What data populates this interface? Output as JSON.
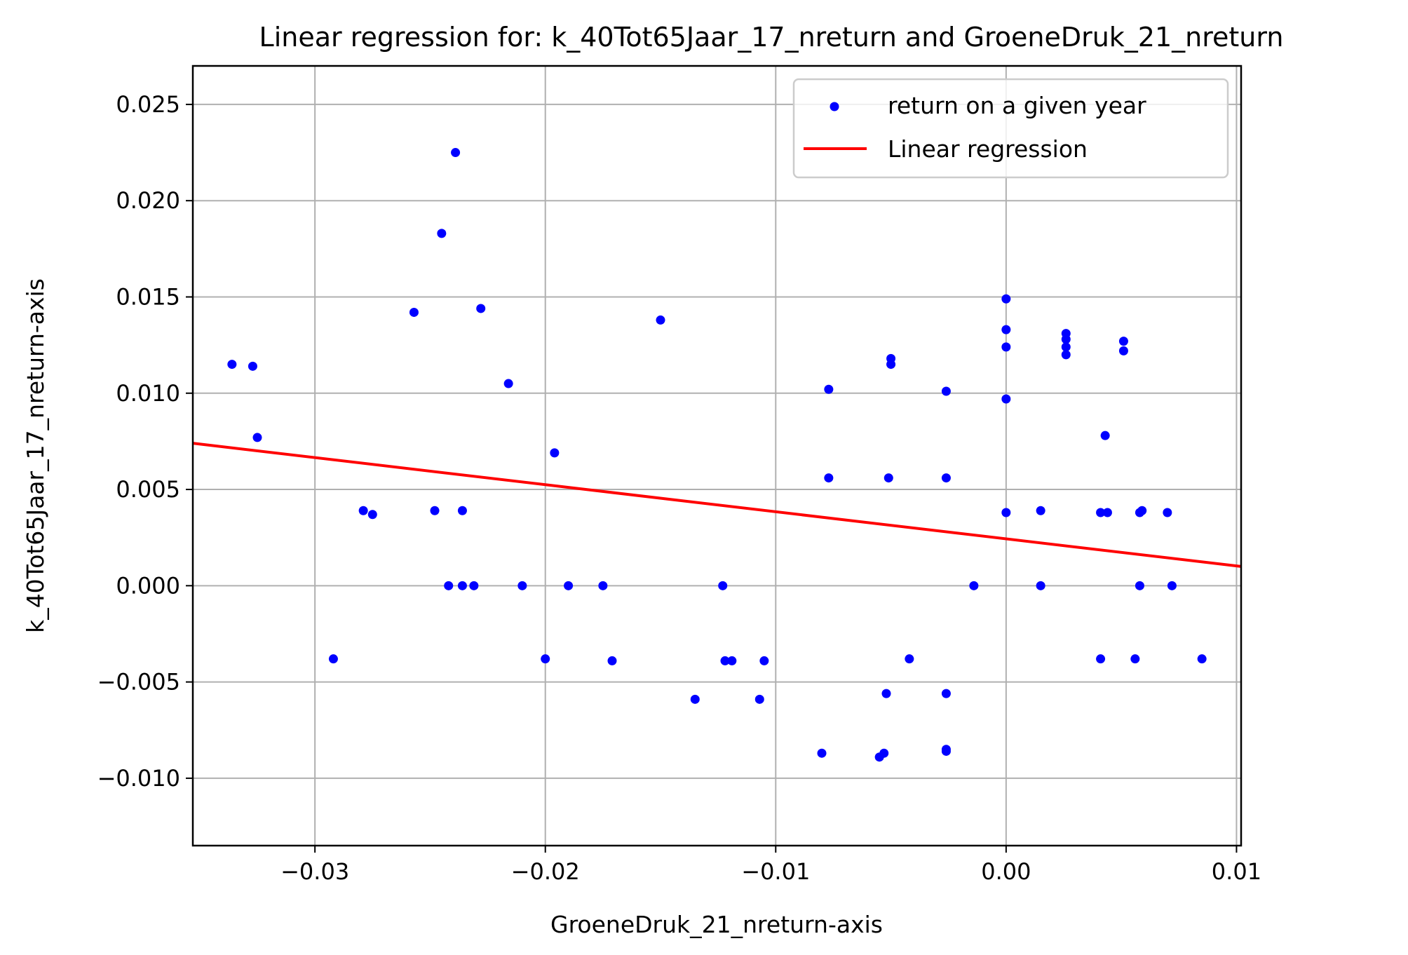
{
  "chart_data": {
    "type": "scatter",
    "title": "Linear regression for: k_40Tot65Jaar_17_nreturn and GroeneDruk_21_nreturn",
    "xlabel": "GroeneDruk_21_nreturn-axis",
    "ylabel": "k_40Tot65Jaar_17_nreturn-axis",
    "xlim": [
      -0.0353,
      0.0102
    ],
    "ylim": [
      -0.0135,
      0.027
    ],
    "x_ticks": [
      -0.03,
      -0.02,
      -0.01,
      0.0,
      0.01
    ],
    "x_tick_labels": [
      "−0.03",
      "−0.02",
      "−0.01",
      "0.00",
      "0.01"
    ],
    "y_ticks": [
      -0.01,
      -0.005,
      0.0,
      0.005,
      0.01,
      0.015,
      0.02,
      0.025
    ],
    "y_tick_labels": [
      "−0.010",
      "−0.005",
      "0.000",
      "0.005",
      "0.010",
      "0.015",
      "0.020",
      "0.025"
    ],
    "grid": true,
    "legend_position": "top-right",
    "series": [
      {
        "name": "return on a given year",
        "type": "scatter",
        "color": "#0000ff",
        "points": [
          [
            -0.0336,
            0.0115
          ],
          [
            -0.0327,
            0.0114
          ],
          [
            -0.0325,
            0.0077
          ],
          [
            -0.0292,
            -0.0038
          ],
          [
            -0.0279,
            0.0039
          ],
          [
            -0.0275,
            0.0037
          ],
          [
            -0.0257,
            0.0142
          ],
          [
            -0.0248,
            0.0039
          ],
          [
            -0.0245,
            0.0183
          ],
          [
            -0.0242,
            0.0
          ],
          [
            -0.0239,
            0.0225
          ],
          [
            -0.0236,
            0.0039
          ],
          [
            -0.0236,
            0.0
          ],
          [
            -0.0231,
            0.0
          ],
          [
            -0.0228,
            0.0144
          ],
          [
            -0.0216,
            0.0105
          ],
          [
            -0.021,
            0.0
          ],
          [
            -0.02,
            -0.0038
          ],
          [
            -0.0196,
            0.0069
          ],
          [
            -0.019,
            0.0
          ],
          [
            -0.0175,
            0.0
          ],
          [
            -0.0171,
            -0.0039
          ],
          [
            -0.015,
            0.0138
          ],
          [
            -0.0135,
            -0.0059
          ],
          [
            -0.0123,
            0.0
          ],
          [
            -0.0122,
            -0.0039
          ],
          [
            -0.0119,
            -0.0039
          ],
          [
            -0.0107,
            -0.0059
          ],
          [
            -0.0105,
            -0.0039
          ],
          [
            -0.008,
            -0.0087
          ],
          [
            -0.0077,
            0.0102
          ],
          [
            -0.0077,
            0.0056
          ],
          [
            -0.0055,
            -0.0089
          ],
          [
            -0.0053,
            -0.0087
          ],
          [
            -0.0052,
            -0.0056
          ],
          [
            -0.0051,
            0.0056
          ],
          [
            -0.005,
            0.0118
          ],
          [
            -0.005,
            0.0115
          ],
          [
            -0.0042,
            -0.0038
          ],
          [
            -0.0026,
            0.0101
          ],
          [
            -0.0026,
            0.0056
          ],
          [
            -0.0026,
            -0.0056
          ],
          [
            -0.0026,
            -0.0085
          ],
          [
            -0.0026,
            -0.0086
          ],
          [
            -0.0014,
            0.0
          ],
          [
            0.0,
            0.0149
          ],
          [
            0.0,
            0.0133
          ],
          [
            0.0,
            0.0124
          ],
          [
            0.0,
            0.0097
          ],
          [
            0.0,
            0.0038
          ],
          [
            0.0015,
            0.0039
          ],
          [
            0.0015,
            0.0
          ],
          [
            0.0026,
            0.0131
          ],
          [
            0.0026,
            0.0128
          ],
          [
            0.0026,
            0.0124
          ],
          [
            0.0026,
            0.012
          ],
          [
            0.0041,
            0.0038
          ],
          [
            0.0041,
            -0.0038
          ],
          [
            0.0043,
            0.0078
          ],
          [
            0.0044,
            0.0038
          ],
          [
            0.0051,
            0.0127
          ],
          [
            0.0051,
            0.0122
          ],
          [
            0.0056,
            -0.0038
          ],
          [
            0.0058,
            0.0038
          ],
          [
            0.0058,
            0.0
          ],
          [
            0.0059,
            0.0039
          ],
          [
            0.007,
            0.0038
          ],
          [
            0.0072,
            0.0
          ],
          [
            0.0085,
            -0.0038
          ]
        ]
      },
      {
        "name": "Linear regression",
        "type": "line",
        "color": "#ff0000",
        "points": [
          [
            -0.0353,
            0.0074
          ],
          [
            0.0102,
            0.001
          ]
        ]
      }
    ]
  }
}
